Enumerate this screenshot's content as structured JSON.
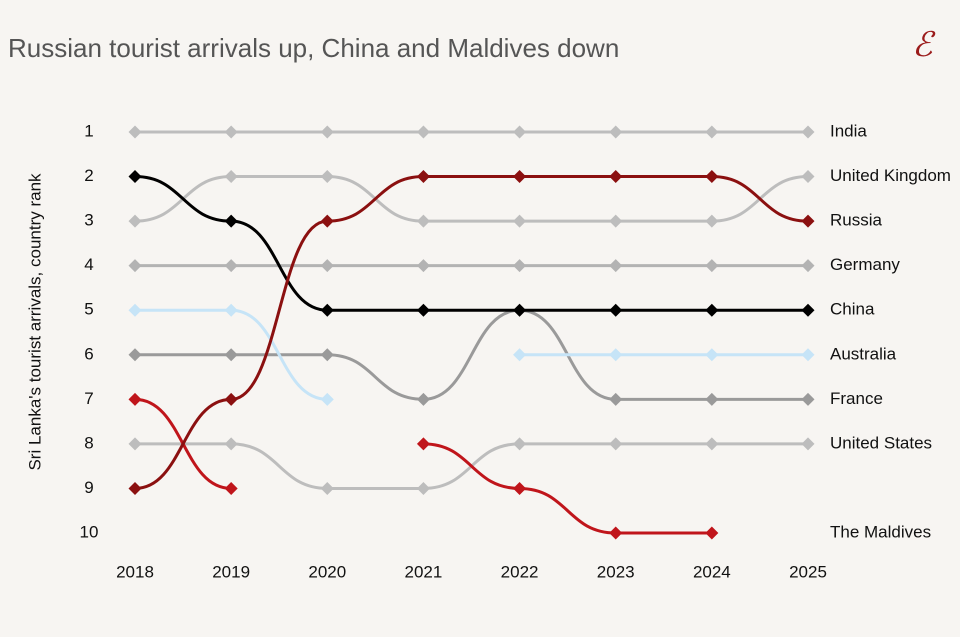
{
  "chart_data": {
    "type": "bump",
    "title": "Russian tourist arrivals up, China and Maldives down",
    "y_label": "Sri Lanka's tourist arrivals, country rank",
    "categories": [
      "2018",
      "2019",
      "2020",
      "2021",
      "2022",
      "2023",
      "2024",
      "2025"
    ],
    "ylim": [
      1,
      10
    ],
    "yticks": [
      1,
      2,
      3,
      4,
      5,
      6,
      7,
      8,
      9,
      10
    ],
    "y_inverted": true,
    "series": [
      {
        "name": "India",
        "color": "#bdbdbd",
        "values": [
          1,
          1,
          1,
          1,
          1,
          1,
          1,
          1
        ]
      },
      {
        "name": "United Kingdom",
        "color": "#bdbdbd",
        "values": [
          3,
          2,
          2,
          3,
          3,
          3,
          3,
          2
        ]
      },
      {
        "name": "Germany",
        "color": "#b3b3b3",
        "values": [
          4,
          4,
          4,
          4,
          4,
          4,
          4,
          4
        ]
      },
      {
        "name": "United States",
        "color": "#bdbdbd",
        "values": [
          8,
          8,
          9,
          9,
          8,
          8,
          8,
          8
        ]
      },
      {
        "name": "France",
        "color": "#9a9a9a",
        "values": [
          6,
          6,
          6,
          7,
          5,
          7,
          7,
          7
        ]
      },
      {
        "name": "Australia",
        "color": "#c6e4f7",
        "values": [
          5,
          5,
          7,
          null,
          6,
          6,
          6,
          6
        ]
      },
      {
        "name": "China",
        "color": "#000000",
        "values": [
          2,
          3,
          5,
          5,
          5,
          5,
          5,
          5
        ]
      },
      {
        "name": "The Maldives",
        "color": "#c0151b",
        "values": [
          7,
          9,
          null,
          8,
          9,
          10,
          10,
          null
        ]
      },
      {
        "name": "Russia",
        "color": "#8b1010",
        "values": [
          9,
          7,
          3,
          2,
          2,
          2,
          2,
          3
        ]
      }
    ]
  }
}
